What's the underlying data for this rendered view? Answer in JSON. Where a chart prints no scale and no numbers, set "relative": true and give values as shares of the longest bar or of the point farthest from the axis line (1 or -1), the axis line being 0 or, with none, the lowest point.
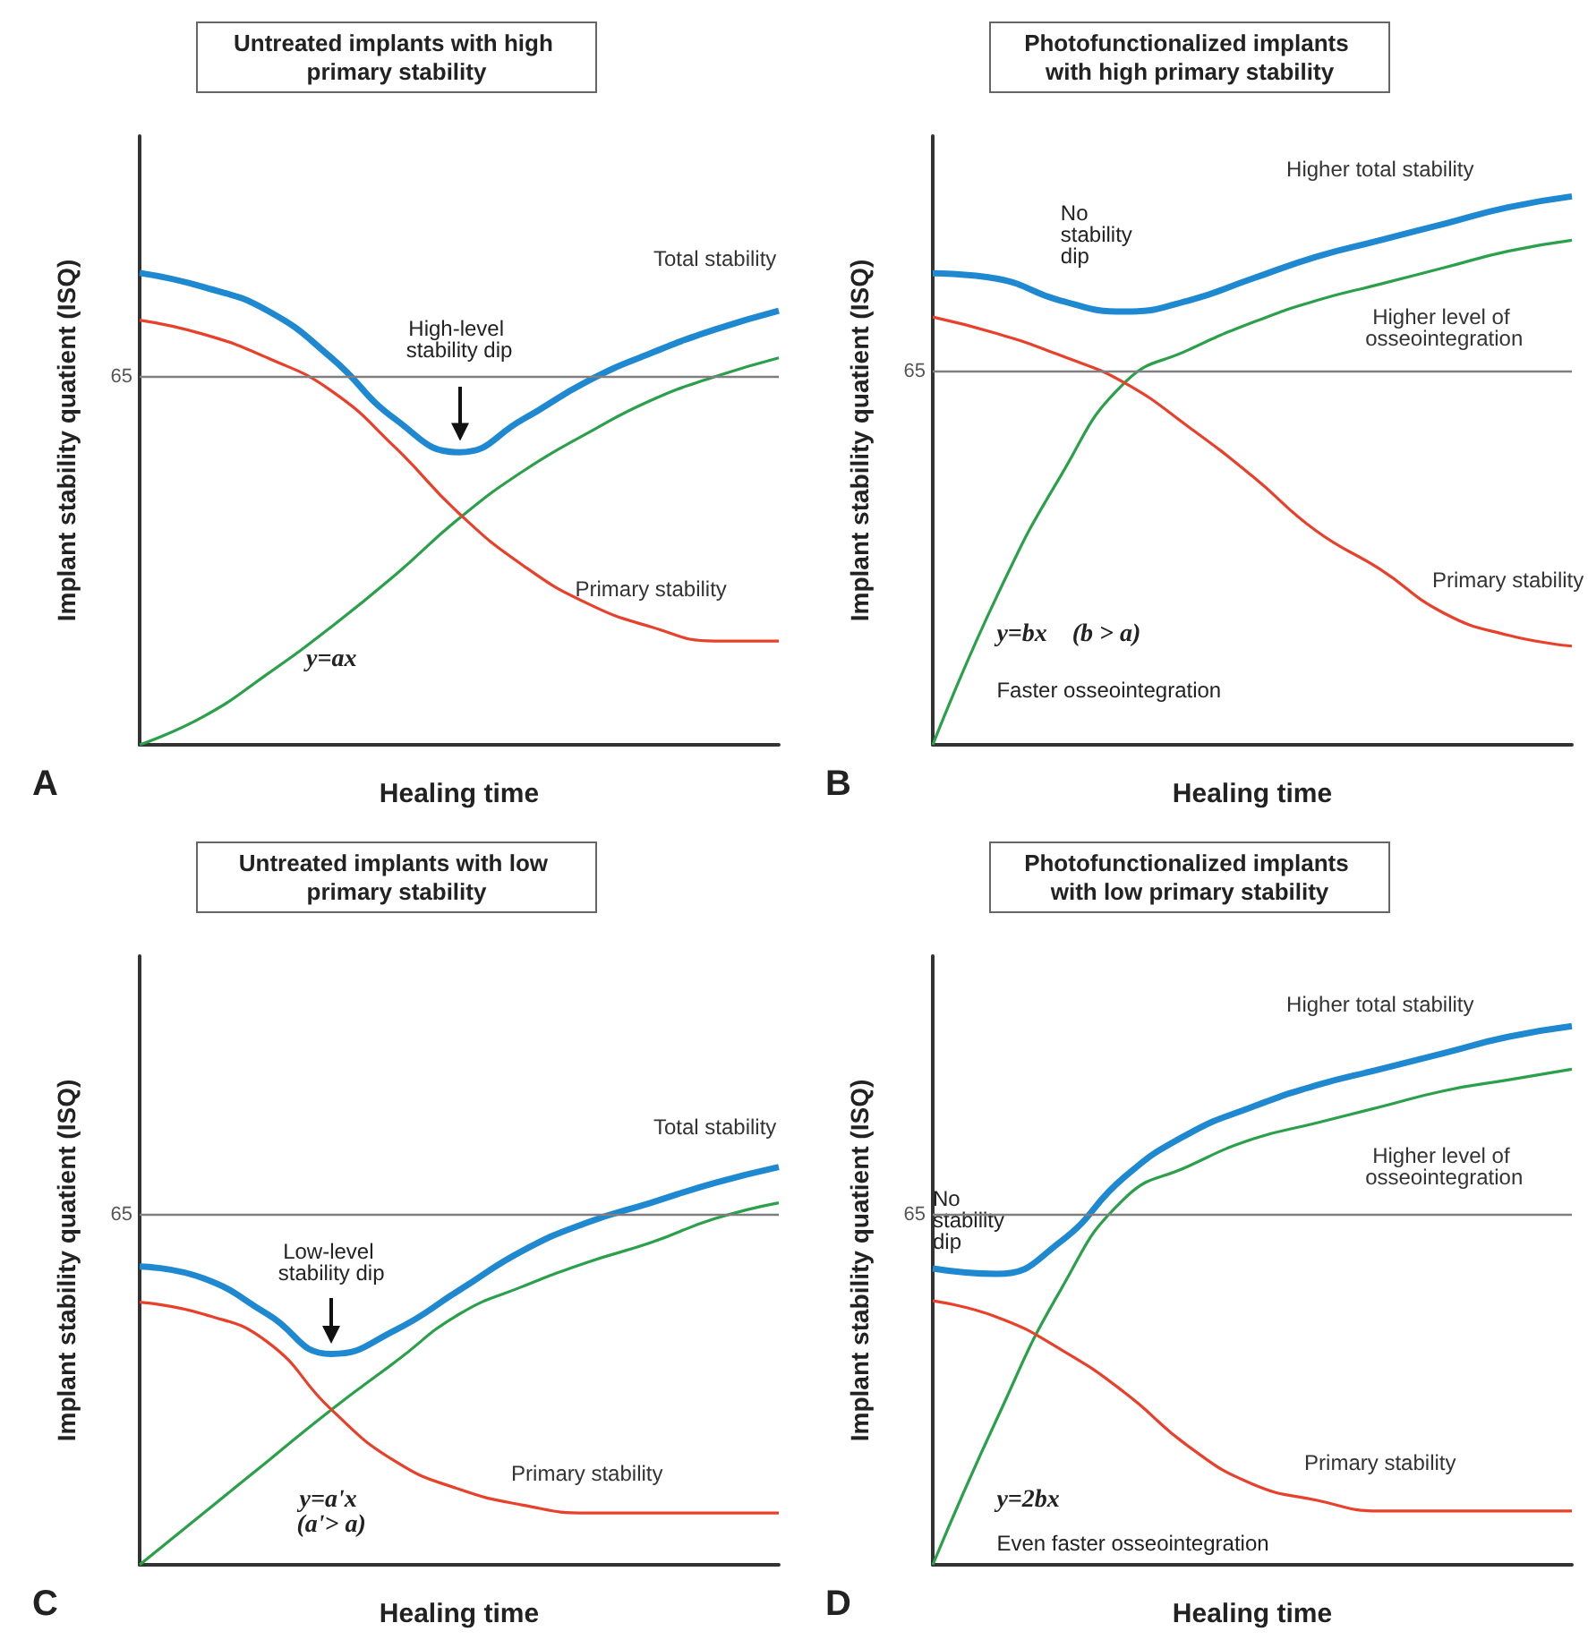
{
  "chart_data": [
    {
      "type": "line",
      "title": "Untreated implants with high primary stability",
      "xlabel": "Healing time",
      "ylabel": "Implant stability quatient (ISQ)",
      "relative": true,
      "categories": [
        null,
        null,
        null,
        null,
        null,
        null,
        null,
        null,
        null,
        null,
        null
      ],
      "series": [
        {
          "name": "Total stability",
          "color": "#1e88d0",
          "values": [
            1.0,
            0.97,
            0.92,
            0.82,
            0.69,
            0.62,
            0.69,
            0.77,
            0.83,
            0.88,
            0.92
          ]
        },
        {
          "name": "Primary stability",
          "color": "#e8402a",
          "values": [
            0.9,
            0.87,
            0.82,
            0.75,
            0.63,
            0.49,
            0.38,
            0.3,
            0.25,
            0.22,
            0.22
          ]
        },
        {
          "color": "#2aa04a",
          "values": [
            0,
            0.06,
            0.15,
            0.25,
            0.36,
            0.48,
            0.58,
            0.66,
            0.73,
            0.78,
            0.82
          ]
        }
      ],
      "ref_lines": [
        {
          "axis": "y",
          "value": 0.78,
          "color": "#7f7f7f"
        }
      ],
      "annotations": [
        "High-level stability dip",
        "y=ax",
        "A",
        "65"
      ]
    },
    {
      "type": "line",
      "title": "Photofunctionalized implants with high primary stability",
      "xlabel": "Healing time",
      "ylabel": "Implant stability quatient (ISQ)",
      "relative": true,
      "categories": [
        null,
        null,
        null,
        null,
        null,
        null,
        null,
        null,
        null,
        null,
        null
      ],
      "series": [
        {
          "name": "Higher total stability",
          "color": "#1e88d0",
          "values": [
            0.86,
            0.85,
            0.81,
            0.79,
            0.81,
            0.85,
            0.89,
            0.92,
            0.95,
            0.98,
            1.0
          ]
        },
        {
          "name": "Primary stability",
          "color": "#e8402a",
          "values": [
            0.78,
            0.75,
            0.71,
            0.66,
            0.58,
            0.49,
            0.39,
            0.32,
            0.24,
            0.2,
            0.18
          ]
        },
        {
          "name": "Higher level of osseointegration",
          "color": "#2aa04a",
          "values": [
            0,
            0.27,
            0.49,
            0.66,
            0.72,
            0.77,
            0.81,
            0.84,
            0.87,
            0.9,
            0.92
          ]
        }
      ],
      "ref_lines": [
        {
          "axis": "y",
          "value": 0.68,
          "color": "#7f7f7f"
        }
      ],
      "annotations": [
        "No stability dip",
        "y=bx    (b > a)",
        "Faster osseointegration",
        "B",
        "65"
      ]
    },
    {
      "type": "line",
      "title": "Untreated implants with low primary stability",
      "xlabel": "Healing time",
      "ylabel": "Implant stability quatient (ISQ)",
      "relative": true,
      "categories": [
        null,
        null,
        null,
        null,
        null,
        null,
        null,
        null,
        null,
        null,
        null
      ],
      "series": [
        {
          "name": "Total stability",
          "color": "#1e88d0",
          "values": [
            0.75,
            0.72,
            0.63,
            0.53,
            0.59,
            0.69,
            0.79,
            0.86,
            0.91,
            0.96,
            1.0
          ]
        },
        {
          "name": "Primary stability",
          "color": "#e8402a",
          "values": [
            0.66,
            0.63,
            0.56,
            0.39,
            0.26,
            0.19,
            0.15,
            0.13,
            0.13,
            0.13,
            0.13
          ]
        },
        {
          "color": "#2aa04a",
          "values": [
            0,
            0.13,
            0.26,
            0.39,
            0.51,
            0.63,
            0.7,
            0.76,
            0.81,
            0.87,
            0.91
          ]
        }
      ],
      "ref_lines": [
        {
          "axis": "y",
          "value": 0.88,
          "color": "#7f7f7f"
        }
      ],
      "annotations": [
        "Low-level stability dip",
        "y=a'x (a'> a)",
        "C",
        "65"
      ]
    },
    {
      "type": "line",
      "title": "Photofunctionalized implants with low primary stability",
      "xlabel": "Healing time",
      "ylabel": "Implant stability quatient (ISQ)",
      "relative": true,
      "categories": [
        null,
        null,
        null,
        null,
        null,
        null,
        null,
        null,
        null,
        null,
        null
      ],
      "series": [
        {
          "name": "Higher total stability",
          "color": "#1e88d0",
          "values": [
            0.55,
            0.54,
            0.6,
            0.72,
            0.8,
            0.85,
            0.89,
            0.92,
            0.95,
            0.98,
            1.0
          ]
        },
        {
          "name": "Primary stability",
          "color": "#e8402a",
          "values": [
            0.49,
            0.46,
            0.4,
            0.32,
            0.22,
            0.15,
            0.12,
            0.1,
            0.1,
            0.1,
            0.1
          ]
        },
        {
          "name": "Higher level of osseointegration",
          "color": "#2aa04a",
          "values": [
            0,
            0.27,
            0.51,
            0.68,
            0.74,
            0.79,
            0.82,
            0.85,
            0.88,
            0.9,
            0.92
          ]
        }
      ],
      "ref_lines": [
        {
          "axis": "y",
          "value": 0.65,
          "color": "#7f7f7f"
        }
      ],
      "annotations": [
        "No stability dip",
        "y=2bx",
        "Even faster osseointegration",
        "D",
        "65"
      ]
    }
  ]
}
